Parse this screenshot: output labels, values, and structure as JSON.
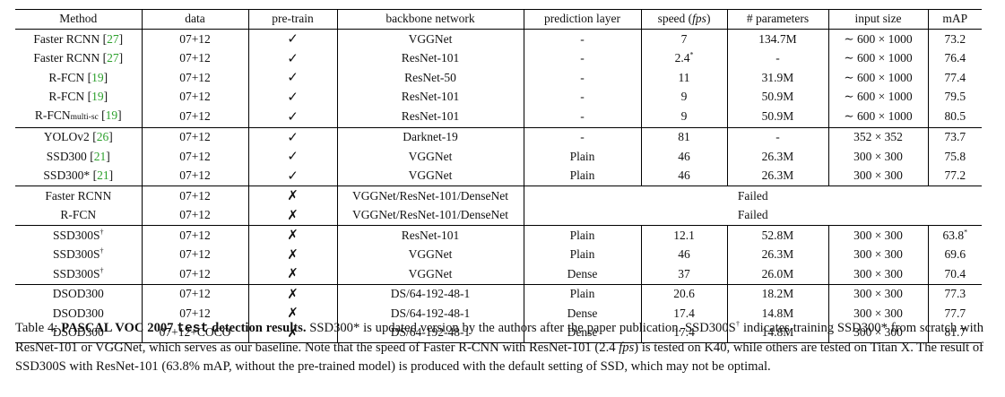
{
  "table": {
    "headers": {
      "method": "Method",
      "data": "data",
      "pretrain": "pre-train",
      "backbone": "backbone network",
      "pred": "prediction layer",
      "speed": "speed (",
      "speed_unit": "fps",
      "speed_close": ")",
      "params": "# parameters",
      "input": "input size",
      "map": "mAP"
    },
    "check_glyph": "✓",
    "cross_glyph": "✗",
    "groups": [
      [
        {
          "name": "Faster RCNN",
          "cite": "27",
          "data": "07+12",
          "pretrain": true,
          "backbone": "VGGNet",
          "pred": "-",
          "speed": "7",
          "params": "134.7M",
          "input": "∼ 600 × 1000",
          "map": "73.2"
        },
        {
          "name": "Faster RCNN",
          "cite": "27",
          "data": "07+12",
          "pretrain": true,
          "backbone": "ResNet-101",
          "pred": "-",
          "speed": "2.4",
          "speed_sup": "*",
          "params": "-",
          "input": "∼ 600 × 1000",
          "map": "76.4"
        },
        {
          "name": "R-FCN",
          "cite": "19",
          "data": "07+12",
          "pretrain": true,
          "backbone": "ResNet-50",
          "pred": "-",
          "speed": "11",
          "params": "31.9M",
          "input": "∼ 600 × 1000",
          "map": "77.4"
        },
        {
          "name": "R-FCN",
          "cite": "19",
          "data": "07+12",
          "pretrain": true,
          "backbone": "ResNet-101",
          "pred": "-",
          "speed": "9",
          "params": "50.9M",
          "input": "∼ 600 × 1000",
          "map": "79.5"
        },
        {
          "name": "R-FCN",
          "sub": "multi-sc",
          "cite": "19",
          "data": "07+12",
          "pretrain": true,
          "backbone": "ResNet-101",
          "pred": "-",
          "speed": "9",
          "params": "50.9M",
          "input": "∼ 600 × 1000",
          "map": "80.5"
        }
      ],
      [
        {
          "name": "YOLOv2",
          "cite": "26",
          "data": "07+12",
          "pretrain": true,
          "backbone": "Darknet-19",
          "pred": "-",
          "speed": "81",
          "params": "-",
          "input": "352 × 352",
          "map": "73.7"
        },
        {
          "name": "SSD300",
          "cite": "21",
          "data": "07+12",
          "pretrain": true,
          "backbone": "VGGNet",
          "pred": "Plain",
          "speed": "46",
          "params": "26.3M",
          "input": "300 × 300",
          "map": "75.8"
        },
        {
          "name": "SSD300*",
          "cite": "21",
          "data": "07+12",
          "pretrain": true,
          "backbone": "VGGNet",
          "pred": "Plain",
          "speed": "46",
          "params": "26.3M",
          "input": "300 × 300",
          "map": "77.2"
        }
      ],
      [
        {
          "name": "Faster RCNN",
          "data": "07+12",
          "pretrain": false,
          "backbone": "VGGNet/ResNet-101/DenseNet",
          "failed": "Failed"
        },
        {
          "name": "R-FCN",
          "data": "07+12",
          "pretrain": false,
          "backbone": "VGGNet/ResNet-101/DenseNet",
          "failed": "Failed"
        }
      ],
      [
        {
          "name": "SSD300S",
          "name_sup": "†",
          "data": "07+12",
          "pretrain": false,
          "backbone": "ResNet-101",
          "pred": "Plain",
          "speed": "12.1",
          "params": "52.8M",
          "input": "300 × 300",
          "map": "63.8",
          "map_sup": "*"
        },
        {
          "name": "SSD300S",
          "name_sup": "†",
          "data": "07+12",
          "pretrain": false,
          "backbone": "VGGNet",
          "pred": "Plain",
          "speed": "46",
          "params": "26.3M",
          "input": "300 × 300",
          "map": "69.6"
        },
        {
          "name": "SSD300S",
          "name_sup": "†",
          "data": "07+12",
          "pretrain": false,
          "backbone": "VGGNet",
          "pred": "Dense",
          "speed": "37",
          "params": "26.0M",
          "input": "300 × 300",
          "map": "70.4"
        }
      ],
      [
        {
          "name": "DSOD300",
          "data": "07+12",
          "pretrain": false,
          "backbone": "DS/64-192-48-1",
          "pred": "Plain",
          "speed": "20.6",
          "params": "18.2M",
          "input": "300 × 300",
          "map": "77.3"
        },
        {
          "name": "DSOD300",
          "data": "07+12",
          "pretrain": false,
          "backbone": "DS/64-192-48-1",
          "pred": "Dense",
          "speed": "17.4",
          "params": "14.8M",
          "input": "300 × 300",
          "map": "77.7"
        },
        {
          "name": "DSOD300",
          "data": "07+12+COCO",
          "pretrain": false,
          "backbone": "DS/64-192-48-1",
          "pred": "Dense",
          "speed": "17.4",
          "params": "14.8M",
          "input": "300 × 300",
          "map": "81.7"
        }
      ]
    ]
  },
  "caption": {
    "label": "Table 4: ",
    "bold_title": "PASCAL VOC 2007 ",
    "mono_word": "test",
    "bold_rest": " detection results.",
    "text_1": " SSD300* is updated version by the authors after the paper publication. SSD300S",
    "dagger": "†",
    "text_2": " indicates training SSD300* from scratch with ResNet-101 or VGGNet, which serves as our baseline. Note that the speed of Faster R-CNN with ResNet-101 (2.4 ",
    "fps": "fps",
    "text_3": ") is tested on K40, while others are tested on Titan X. The result of SSD300S with ResNet-101 (63.8% mAP, without the pre-trained model) is produced with the default setting of SSD, which may not be optimal."
  }
}
